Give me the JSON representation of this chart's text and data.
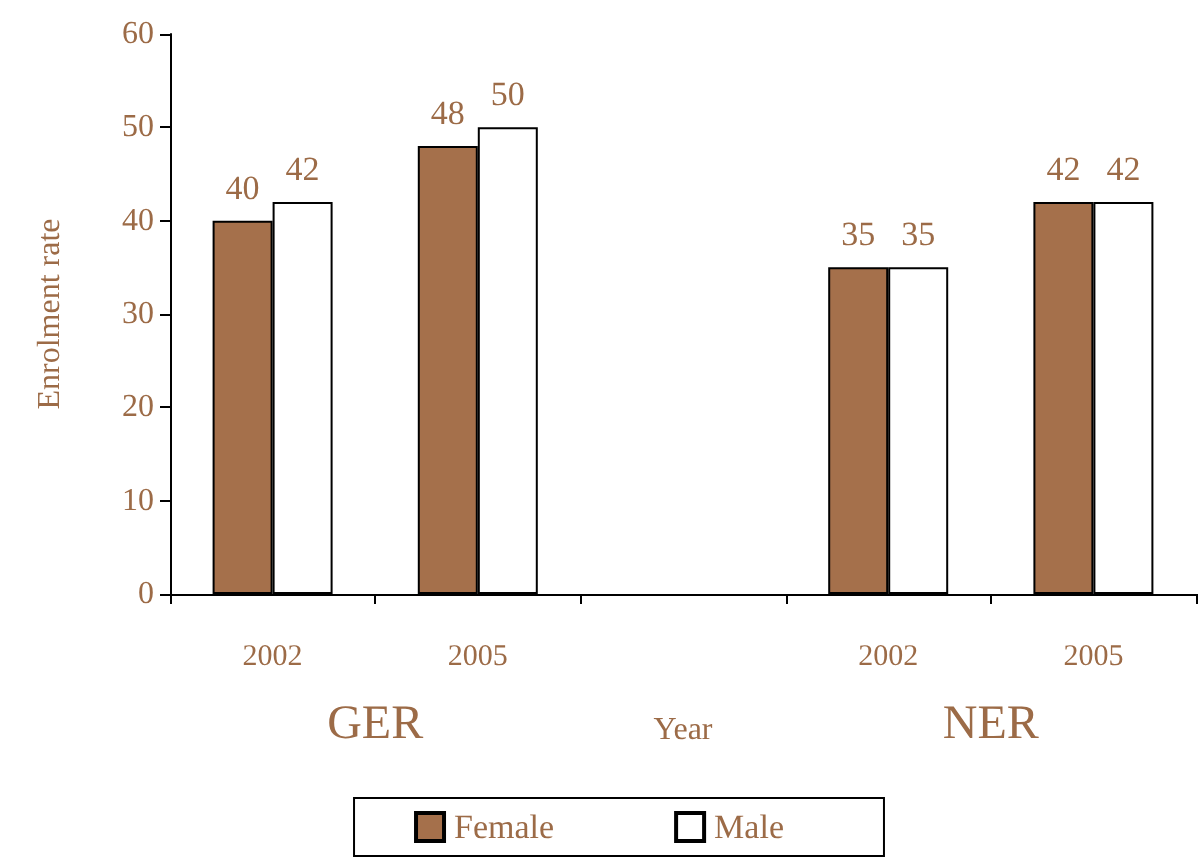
{
  "chart_data": {
    "type": "bar",
    "ylabel": "Enrolment rate",
    "xlabel": "Year",
    "categories": [
      "2002",
      "2005",
      null,
      "2002",
      "2005"
    ],
    "series": [
      {
        "name": "Female",
        "color": "#a5704b",
        "values": [
          40,
          48,
          null,
          35,
          42
        ]
      },
      {
        "name": "Male",
        "color": "#ffffff",
        "values": [
          42,
          50,
          null,
          35,
          42
        ]
      }
    ],
    "ylim": [
      0,
      60
    ],
    "yticks": [
      0,
      10,
      20,
      30,
      40,
      50,
      60
    ],
    "grid": false,
    "legend": "bottom",
    "data_labels": true,
    "annotations": [
      "GER",
      "NER"
    ]
  }
}
